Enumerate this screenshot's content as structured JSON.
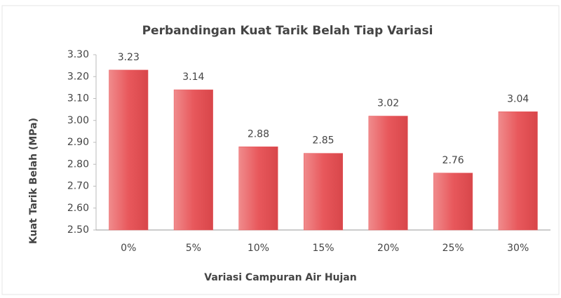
{
  "chart_data": {
    "type": "bar",
    "title": "Perbandingan Kuat Tarik Belah Tiap Variasi",
    "x_label": "Variasi Campuran Air Hujan",
    "y_label": "Kuat Tarik Belah (MPa)",
    "categories": [
      "0%",
      "5%",
      "10%",
      "15%",
      "20%",
      "25%",
      "30%"
    ],
    "values": [
      3.23,
      3.14,
      2.88,
      2.85,
      3.02,
      2.76,
      3.04
    ],
    "color": "#e8585c",
    "ylim": [
      2.5,
      3.3
    ],
    "yticks": [
      {
        "value": 2.5,
        "label": "2.50"
      },
      {
        "value": 2.6,
        "label": "2.60"
      },
      {
        "value": 2.7,
        "label": "2.70"
      },
      {
        "value": 2.8,
        "label": "2.80"
      },
      {
        "value": 2.9,
        "label": "2.90"
      },
      {
        "value": 3.0,
        "label": "3.00"
      },
      {
        "value": 3.1,
        "label": "3.10"
      },
      {
        "value": 3.2,
        "label": "3.20"
      },
      {
        "value": 3.3,
        "label": "3.30"
      }
    ],
    "grid": false
  }
}
